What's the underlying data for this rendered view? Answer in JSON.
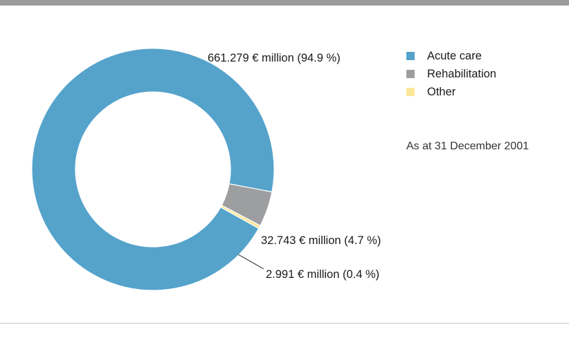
{
  "chart_data": {
    "type": "pie",
    "donut": true,
    "title": "",
    "slices": [
      {
        "name": "Acute care",
        "value": 661.279,
        "percent": 94.9,
        "color": "#55a3cb",
        "label": "661.279 € million (94.9 %)"
      },
      {
        "name": "Rehabilitation",
        "value": 32.743,
        "percent": 4.7,
        "color": "#9d9ea0",
        "label": "32.743 € million (4.7 %)"
      },
      {
        "name": "Other",
        "value": 2.991,
        "percent": 0.4,
        "color": "#fde79a",
        "label": "2.991 € million (0.4 %)"
      }
    ],
    "legend_position": "top-right",
    "note": "As at 31 December 2001"
  }
}
